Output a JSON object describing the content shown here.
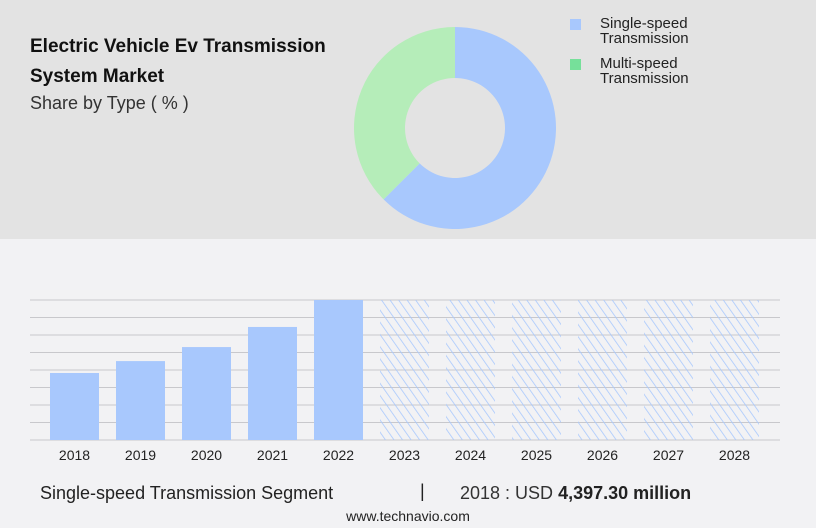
{
  "header": {
    "title": "Electric Vehicle Ev Transmission System Market",
    "subtitle": "Share by Type ( % )"
  },
  "chart_data": [
    {
      "type": "pie",
      "variant": "donut",
      "categories": [
        "Single-speed Transmission",
        "Multi-speed Transmission"
      ],
      "values": [
        62.5,
        37.5
      ],
      "colors": [
        "#a8c8fd",
        "#b5edb9"
      ],
      "legend_colors": [
        "#a8c8fd",
        "#76e09a"
      ],
      "legend_position": "top-right"
    },
    {
      "type": "bar",
      "categories": [
        "2018",
        "2019",
        "2020",
        "2021",
        "2022",
        "2023",
        "2024",
        "2025",
        "2026",
        "2027",
        "2028"
      ],
      "values": [
        4397.3,
        5180,
        6100,
        7420,
        9190,
        null,
        null,
        null,
        null,
        null,
        null
      ],
      "forecast_categories": [
        "2023",
        "2024",
        "2025",
        "2026",
        "2027",
        "2028"
      ],
      "forecast_style": "hatched",
      "ylim": [
        0,
        9190
      ],
      "grid": true,
      "color": "#a8c8fd"
    }
  ],
  "footer": {
    "segment": "Single-speed Transmission Segment",
    "separator": "|",
    "value_prefix": "2018 : USD",
    "value_bold": "4,397.30 million",
    "url": "www.technavio.com"
  }
}
